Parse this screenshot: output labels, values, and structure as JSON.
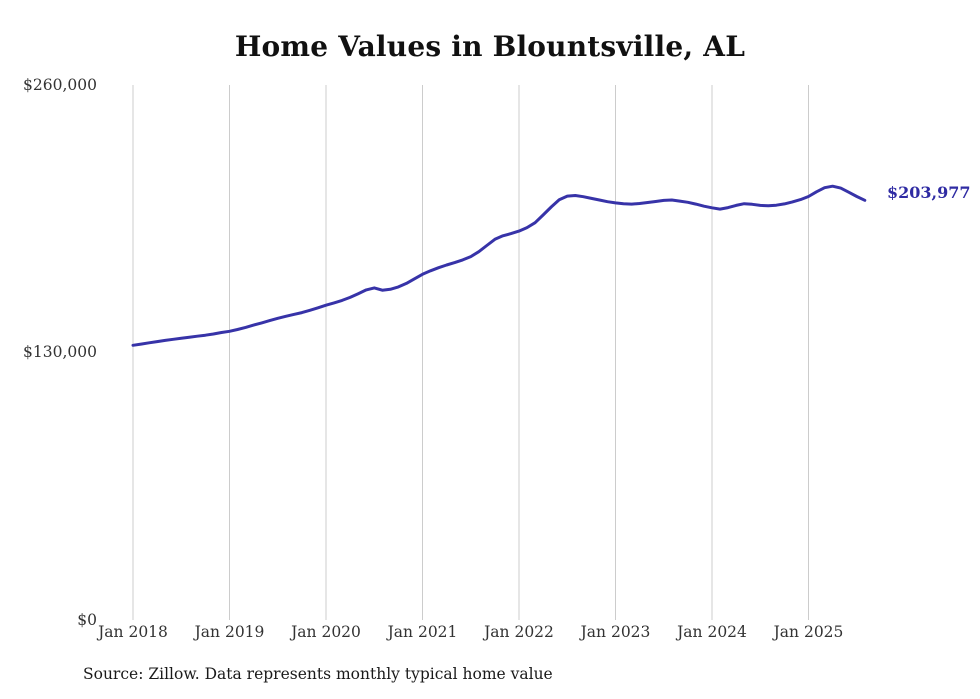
{
  "page": {
    "source_note": "Source: Zillow. Data represents monthly typical home value"
  },
  "colors": {
    "line": "#3733a8",
    "end_label": "#2f2ba3",
    "grid": "#cccccc",
    "axis_text": "#333333",
    "title_text": "#111111"
  },
  "chart_data": {
    "type": "line",
    "title": "Home Values in Blountsville, AL",
    "xlabel": "",
    "ylabel": "",
    "ylim": [
      0,
      260000
    ],
    "grid": "vertical-only",
    "legend_position": "none",
    "y_ticks": [
      {
        "value": 260000,
        "label": "$260,000"
      },
      {
        "value": 130000,
        "label": "$130,000"
      },
      {
        "value": 0,
        "label": "$0"
      }
    ],
    "x_tick_labels": [
      "Jan 2018",
      "Jan 2019",
      "Jan 2020",
      "Jan 2021",
      "Jan 2022",
      "Jan 2023",
      "Jan 2024",
      "Jan 2025"
    ],
    "series": [
      {
        "name": "Typical home value",
        "color": "#3733a8",
        "start": "Jan 2018",
        "frequency": "monthly",
        "values": [
          133500,
          134100,
          134700,
          135300,
          135900,
          136400,
          136900,
          137400,
          137900,
          138400,
          139000,
          139700,
          140300,
          141200,
          142200,
          143300,
          144400,
          145500,
          146600,
          147600,
          148500,
          149400,
          150500,
          151700,
          153000,
          154100,
          155300,
          156800,
          158600,
          160400,
          161400,
          160300,
          160700,
          161900,
          163600,
          165800,
          168000,
          169700,
          171200,
          172500,
          173700,
          175000,
          176600,
          179000,
          182000,
          185000,
          186700,
          187800,
          189000,
          190700,
          193100,
          196800,
          200700,
          204200,
          206000,
          206300,
          205700,
          204900,
          204100,
          203300,
          202700,
          202300,
          202100,
          202400,
          202900,
          203400,
          203900,
          204100,
          203600,
          203000,
          202100,
          201100,
          200300,
          199700,
          200400,
          201500,
          202300,
          202000,
          201500,
          201300,
          201600,
          202200,
          203200,
          204300,
          205800,
          208100,
          210100,
          210800,
          209900,
          207900,
          205800,
          203977
        ]
      }
    ],
    "end_annotation": {
      "label": "$203,977",
      "value": 203977
    }
  }
}
